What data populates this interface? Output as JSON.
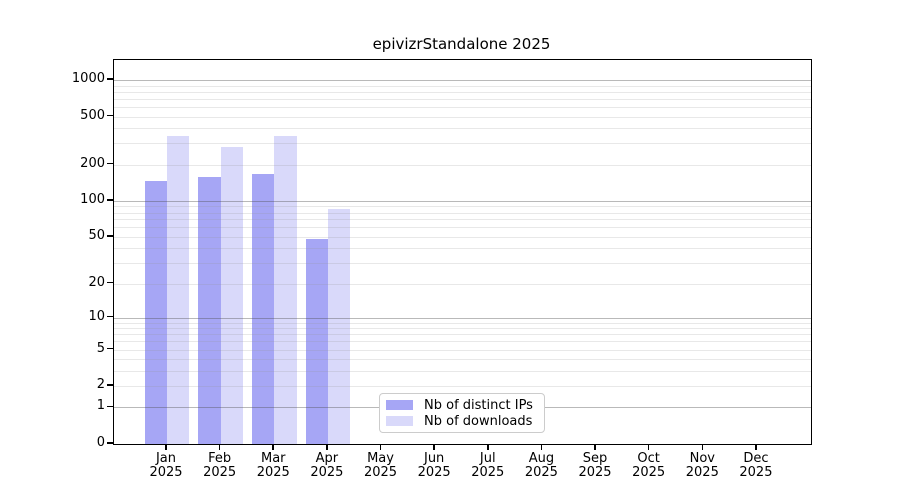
{
  "title": "epivizrStandalone 2025",
  "chart_data": {
    "type": "bar",
    "title": "epivizrStandalone 2025",
    "categories": [
      "Jan",
      "Feb",
      "Mar",
      "Apr",
      "May",
      "Jun",
      "Jul",
      "Aug",
      "Sep",
      "Oct",
      "Nov",
      "Dec"
    ],
    "year_label": "2025",
    "series": [
      {
        "name": "Nb of distinct IPs",
        "color": "#a6a6f5",
        "values": [
          145,
          158,
          167,
          48,
          0,
          0,
          0,
          0,
          0,
          0,
          0,
          0
        ]
      },
      {
        "name": "Nb of downloads",
        "color": "#d9d9fa",
        "values": [
          345,
          282,
          347,
          85,
          0,
          0,
          0,
          0,
          0,
          0,
          0,
          0
        ]
      }
    ],
    "y_axis": {
      "scale": "log1p",
      "ticks": [
        1000,
        500,
        200,
        100,
        50,
        20,
        10,
        5,
        2,
        1,
        0
      ],
      "top_value": 1436
    },
    "grid": {
      "major_values": [
        1,
        10,
        100,
        1000
      ],
      "minor_values": [
        2,
        3,
        4,
        5,
        6,
        7,
        8,
        9,
        20,
        30,
        40,
        50,
        60,
        70,
        80,
        90,
        200,
        300,
        400,
        500,
        600,
        700,
        800,
        900
      ]
    },
    "legend": {
      "position": "bottom-center-inside",
      "entries": [
        "Nb of distinct IPs",
        "Nb of downloads"
      ]
    }
  }
}
